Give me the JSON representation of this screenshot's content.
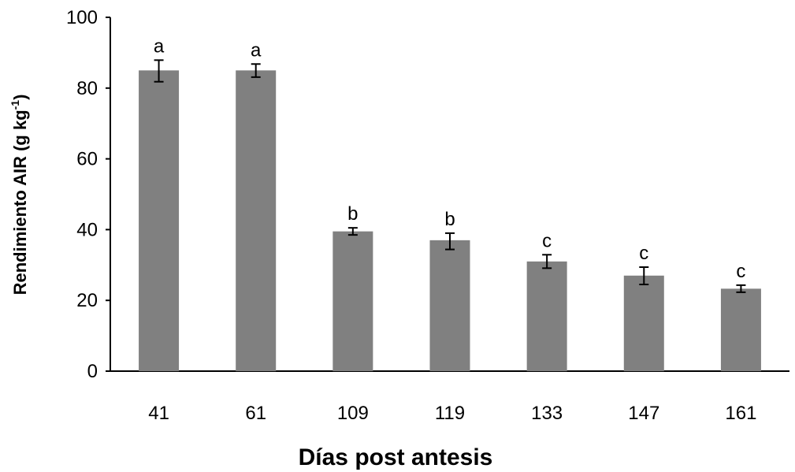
{
  "chart_data": {
    "type": "bar",
    "categories": [
      "41",
      "61",
      "109",
      "119",
      "133",
      "147",
      "161"
    ],
    "values": [
      85,
      85,
      39.5,
      37,
      31,
      27,
      23.3
    ],
    "error_low": [
      81.8,
      83.1,
      38.5,
      34.4,
      29.1,
      24.5,
      22.3
    ],
    "error_high": [
      87.9,
      86.8,
      40.5,
      39,
      32.9,
      29.4,
      24.3
    ],
    "letters": [
      "a",
      "a",
      "b",
      "b",
      "c",
      "c",
      "c"
    ],
    "ylim": [
      0,
      100
    ],
    "yticks": [
      "0",
      "20",
      "40",
      "60",
      "80",
      "100"
    ],
    "xlabel": "Días post antesis",
    "ylabel_main": "Rendimiento AIR (g kg",
    "ylabel_sup": "-1",
    "ylabel_close": ")",
    "bar_color": "#808080",
    "grid": false,
    "legend": "none"
  }
}
